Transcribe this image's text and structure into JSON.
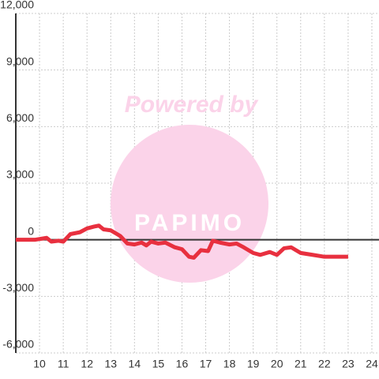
{
  "chart_data": {
    "type": "line",
    "watermark": [
      "Powered by",
      "PAPIMO"
    ],
    "x": [
      9.0,
      9.8,
      10.3,
      10.5,
      10.8,
      11.0,
      11.3,
      11.7,
      12.0,
      12.3,
      12.5,
      12.7,
      13.0,
      13.4,
      13.7,
      14.0,
      14.3,
      14.5,
      14.7,
      15.0,
      15.3,
      15.7,
      16.0,
      16.3,
      16.5,
      16.8,
      17.1,
      17.3,
      17.6,
      18.0,
      18.3,
      18.6,
      19.0,
      19.3,
      19.7,
      20.0,
      20.3,
      20.6,
      21.0,
      21.5,
      22.0,
      22.5,
      23.0
    ],
    "series": [
      {
        "color": "#e8303f",
        "values": [
          0,
          0,
          100,
          -100,
          -50,
          -100,
          300,
          400,
          600,
          700,
          750,
          550,
          500,
          200,
          -200,
          -250,
          -150,
          -300,
          -100,
          -200,
          -150,
          -400,
          -500,
          -900,
          -950,
          -550,
          -600,
          -50,
          -150,
          -250,
          -200,
          -400,
          -700,
          -800,
          -650,
          -800,
          -450,
          -400,
          -700,
          -800,
          -900,
          -900,
          -900
        ]
      }
    ],
    "xlim": [
      9,
      24.3
    ],
    "xticks": [
      10,
      11,
      12,
      13,
      14,
      15,
      16,
      17,
      18,
      19,
      20,
      21,
      22,
      23,
      24
    ],
    "ylim": [
      -6000,
      12000
    ],
    "yticks": [
      {
        "value": -6000,
        "label": "-6,000"
      },
      {
        "value": -3000,
        "label": "-3,000"
      },
      0,
      {
        "value": 3000,
        "label": "3,000"
      },
      {
        "value": 6000,
        "label": "6,000"
      },
      {
        "value": 9000,
        "label": "9,000"
      },
      {
        "value": 12000,
        "label": "12,000"
      }
    ],
    "grid": true
  }
}
